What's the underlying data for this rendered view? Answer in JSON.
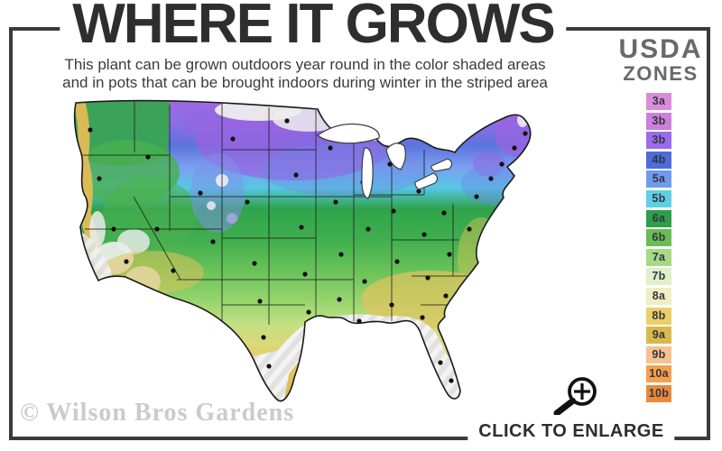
{
  "header": {
    "title": "WHERE IT GROWS",
    "subtitle_line1": "This plant can be grown outdoors year round in the color shaded areas",
    "subtitle_line2": "and in pots that can be brought indoors during winter in the striped area"
  },
  "legend": {
    "title_line1": "USDA",
    "title_line2": "ZONES",
    "zones": [
      {
        "label": "3a",
        "color": "#d88dda"
      },
      {
        "label": "3b",
        "color": "#cb80db"
      },
      {
        "label": "3b",
        "color": "#9a6ceb"
      },
      {
        "label": "4b",
        "color": "#4c6dd9"
      },
      {
        "label": "5a",
        "color": "#6f9bef"
      },
      {
        "label": "5b",
        "color": "#5ecfe4"
      },
      {
        "label": "6a",
        "color": "#2f9e48"
      },
      {
        "label": "6b",
        "color": "#69bd55"
      },
      {
        "label": "7a",
        "color": "#a6da86"
      },
      {
        "label": "7b",
        "color": "#dff0cb"
      },
      {
        "label": "8a",
        "color": "#f1edc5"
      },
      {
        "label": "8b",
        "color": "#ebcf6a"
      },
      {
        "label": "9a",
        "color": "#d9b94e"
      },
      {
        "label": "9b",
        "color": "#f6c291"
      },
      {
        "label": "10a",
        "color": "#f5a04f"
      },
      {
        "label": "10b",
        "color": "#e98a3c"
      }
    ]
  },
  "footer": {
    "watermark": "© Wilson Bros Gardens",
    "enlarge_label": "CLICK TO ENLARGE"
  },
  "colors": {
    "frame": "#3a3a3a",
    "title_text": "#2e2e2e",
    "usda_text": "#696969",
    "watermark_text": "#cbcbcb"
  }
}
